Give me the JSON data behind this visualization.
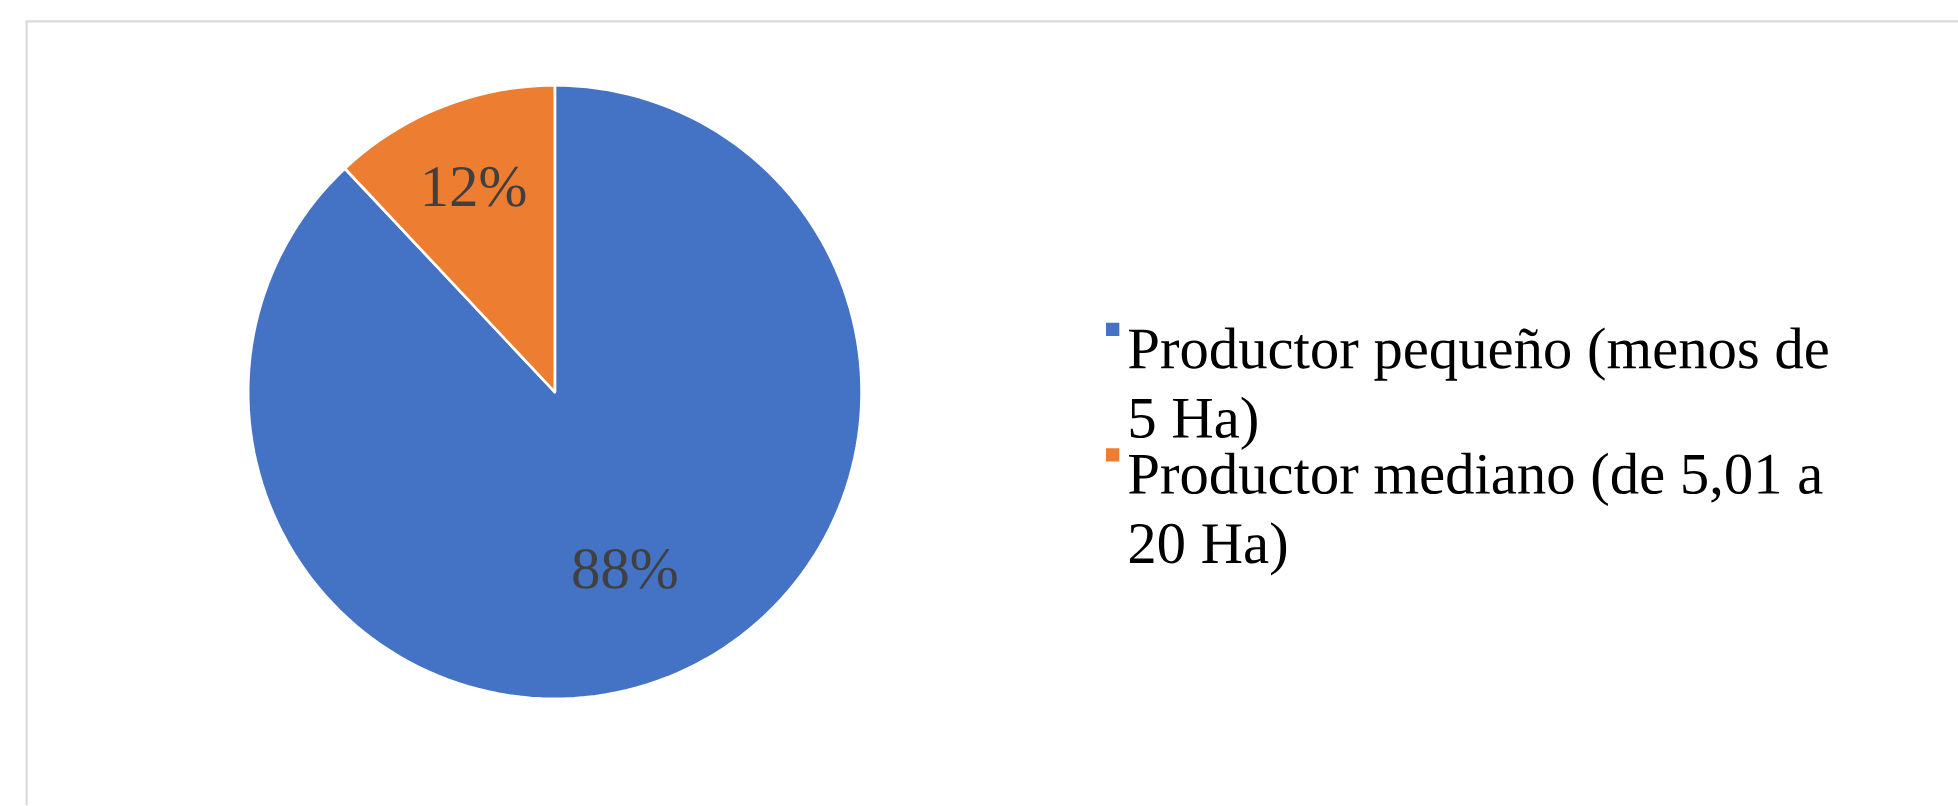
{
  "chart_data": {
    "type": "pie",
    "categories": [
      "Productor pequeño (menos de 5 Ha)",
      "Productor mediano (de 5,01 a 20 Ha)"
    ],
    "values": [
      88,
      12
    ],
    "colors": [
      "#4472c4",
      "#ed7d31"
    ],
    "value_labels": [
      "88%",
      "12%"
    ],
    "legend": "right"
  }
}
